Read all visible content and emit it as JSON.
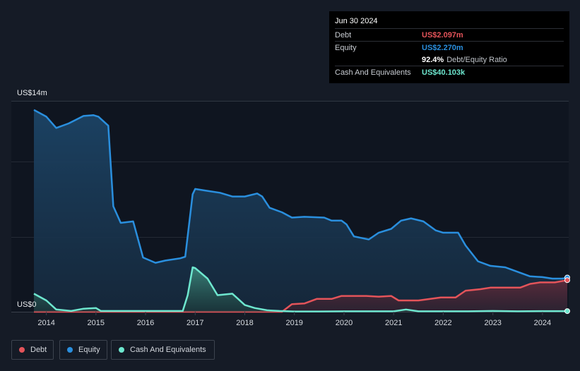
{
  "tooltip": {
    "date": "Jun 30 2024",
    "debt_label": "Debt",
    "debt_value": "US$2.097m",
    "equity_label": "Equity",
    "equity_value": "US$2.270m",
    "ratio_value": "92.4%",
    "ratio_label": "Debt/Equity Ratio",
    "cash_label": "Cash And Equivalents",
    "cash_value": "US$40.103k"
  },
  "legend": {
    "debt": "Debt",
    "equity": "Equity",
    "cash": "Cash And Equivalents"
  },
  "colors": {
    "debt": "#e4545a",
    "equity": "#2a8fde",
    "cash": "#6ee7cf",
    "background": "#151b26"
  },
  "chart_data": {
    "type": "area",
    "title": "",
    "xlabel": "",
    "ylabel": "",
    "y_top_label": "US$14m",
    "y_bottom_label": "US$0",
    "ylim": [
      0,
      14
    ],
    "xlim": [
      2013.75,
      2024.5
    ],
    "x_ticks": [
      "2014",
      "2015",
      "2016",
      "2017",
      "2018",
      "2019",
      "2020",
      "2021",
      "2022",
      "2023",
      "2024"
    ],
    "series": [
      {
        "name": "Equity",
        "points": [
          [
            2013.75,
            13.4
          ],
          [
            2014.0,
            12.95
          ],
          [
            2014.2,
            12.2
          ],
          [
            2014.45,
            12.5
          ],
          [
            2014.75,
            13.0
          ],
          [
            2014.95,
            13.05
          ],
          [
            2015.05,
            12.95
          ],
          [
            2015.25,
            12.35
          ],
          [
            2015.35,
            7.0
          ],
          [
            2015.5,
            5.9
          ],
          [
            2015.75,
            6.0
          ],
          [
            2015.95,
            3.6
          ],
          [
            2016.2,
            3.25
          ],
          [
            2016.4,
            3.4
          ],
          [
            2016.7,
            3.55
          ],
          [
            2016.8,
            3.65
          ],
          [
            2016.95,
            7.8
          ],
          [
            2017.0,
            8.15
          ],
          [
            2017.2,
            8.05
          ],
          [
            2017.5,
            7.9
          ],
          [
            2017.75,
            7.65
          ],
          [
            2018.0,
            7.65
          ],
          [
            2018.25,
            7.85
          ],
          [
            2018.35,
            7.65
          ],
          [
            2018.5,
            6.9
          ],
          [
            2018.75,
            6.6
          ],
          [
            2018.95,
            6.25
          ],
          [
            2019.2,
            6.3
          ],
          [
            2019.6,
            6.25
          ],
          [
            2019.75,
            6.05
          ],
          [
            2019.95,
            6.05
          ],
          [
            2020.05,
            5.8
          ],
          [
            2020.2,
            5.0
          ],
          [
            2020.5,
            4.8
          ],
          [
            2020.7,
            5.25
          ],
          [
            2020.95,
            5.5
          ],
          [
            2021.15,
            6.05
          ],
          [
            2021.35,
            6.2
          ],
          [
            2021.6,
            6.0
          ],
          [
            2021.85,
            5.4
          ],
          [
            2022.0,
            5.25
          ],
          [
            2022.3,
            5.25
          ],
          [
            2022.45,
            4.4
          ],
          [
            2022.7,
            3.35
          ],
          [
            2022.95,
            3.05
          ],
          [
            2023.25,
            2.95
          ],
          [
            2023.5,
            2.65
          ],
          [
            2023.75,
            2.35
          ],
          [
            2024.0,
            2.3
          ],
          [
            2024.2,
            2.2
          ],
          [
            2024.4,
            2.2
          ],
          [
            2024.5,
            2.27
          ]
        ]
      },
      {
        "name": "Debt",
        "points": [
          [
            2013.75,
            0.0
          ],
          [
            2014.8,
            0.0
          ],
          [
            2018.75,
            0.0
          ],
          [
            2018.95,
            0.5
          ],
          [
            2019.2,
            0.55
          ],
          [
            2019.45,
            0.85
          ],
          [
            2019.75,
            0.85
          ],
          [
            2019.95,
            1.05
          ],
          [
            2020.15,
            1.05
          ],
          [
            2020.45,
            1.05
          ],
          [
            2020.7,
            1.0
          ],
          [
            2020.95,
            1.05
          ],
          [
            2021.1,
            0.75
          ],
          [
            2021.5,
            0.75
          ],
          [
            2021.95,
            0.95
          ],
          [
            2022.25,
            0.95
          ],
          [
            2022.45,
            1.4
          ],
          [
            2022.75,
            1.5
          ],
          [
            2022.95,
            1.6
          ],
          [
            2023.25,
            1.6
          ],
          [
            2023.55,
            1.6
          ],
          [
            2023.75,
            1.85
          ],
          [
            2023.95,
            1.95
          ],
          [
            2024.25,
            1.95
          ],
          [
            2024.5,
            2.097
          ]
        ]
      },
      {
        "name": "Cash And Equivalents",
        "points": [
          [
            2013.75,
            1.2
          ],
          [
            2014.0,
            0.75
          ],
          [
            2014.2,
            0.15
          ],
          [
            2014.5,
            0.05
          ],
          [
            2014.75,
            0.2
          ],
          [
            2015.0,
            0.25
          ],
          [
            2015.1,
            0.05
          ],
          [
            2015.5,
            0.05
          ],
          [
            2016.0,
            0.05
          ],
          [
            2016.4,
            0.05
          ],
          [
            2016.75,
            0.05
          ],
          [
            2016.85,
            1.1
          ],
          [
            2016.95,
            2.95
          ],
          [
            2017.0,
            2.9
          ],
          [
            2017.25,
            2.2
          ],
          [
            2017.45,
            1.1
          ],
          [
            2017.75,
            1.2
          ],
          [
            2017.85,
            0.9
          ],
          [
            2018.0,
            0.45
          ],
          [
            2018.2,
            0.25
          ],
          [
            2018.45,
            0.1
          ],
          [
            2018.7,
            0.05
          ],
          [
            2019.0,
            0.02
          ],
          [
            2019.5,
            0.02
          ],
          [
            2020.0,
            0.03
          ],
          [
            2020.5,
            0.03
          ],
          [
            2021.0,
            0.03
          ],
          [
            2021.25,
            0.15
          ],
          [
            2021.5,
            0.03
          ],
          [
            2022.0,
            0.03
          ],
          [
            2022.5,
            0.03
          ],
          [
            2023.0,
            0.05
          ],
          [
            2023.5,
            0.03
          ],
          [
            2024.0,
            0.04
          ],
          [
            2024.5,
            0.04
          ]
        ]
      }
    ]
  }
}
